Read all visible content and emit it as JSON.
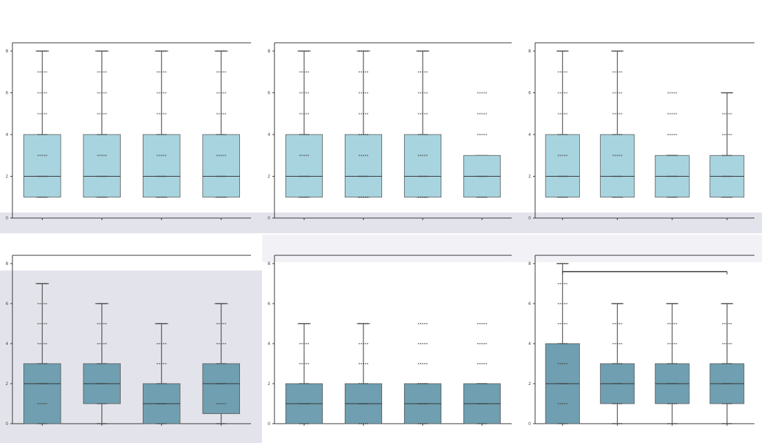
{
  "figure": {
    "suptitle": "",
    "background": "#ffffff"
  },
  "chart_data": [
    {
      "type": "box",
      "title_line1": "",
      "title_line2": "",
      "xlabel": "",
      "ylabel": "",
      "ylim": [
        0,
        8
      ],
      "yticks": [
        0,
        2,
        4,
        6,
        8
      ],
      "categories": [
        "",
        "",
        "",
        ""
      ],
      "boxes": [
        {
          "q1": 1,
          "median": 2,
          "q3": 4,
          "whisker_low": 1,
          "whisker_high": 8
        },
        {
          "q1": 1,
          "median": 2,
          "q3": 4,
          "whisker_low": 1,
          "whisker_high": 8
        },
        {
          "q1": 1,
          "median": 2,
          "q3": 4,
          "whisker_low": 1,
          "whisker_high": 8
        },
        {
          "q1": 1,
          "median": 2,
          "q3": 4,
          "whisker_low": 1,
          "whisker_high": 8
        }
      ],
      "points": [
        [
          1,
          2,
          3,
          4,
          5,
          6,
          7,
          8
        ],
        [
          1,
          2,
          3,
          4,
          5,
          6,
          7,
          8
        ],
        [
          1,
          2,
          3,
          4,
          5,
          6,
          7,
          8
        ],
        [
          1,
          2,
          3,
          4,
          5,
          6,
          7,
          8
        ]
      ],
      "box_color": "#a8d4df",
      "bracket": null
    },
    {
      "type": "box",
      "title_line1": "",
      "title_line2": "",
      "xlabel": "",
      "ylabel": "",
      "ylim": [
        0,
        8
      ],
      "yticks": [
        0,
        2,
        4,
        6,
        8
      ],
      "categories": [
        "",
        "",
        "",
        ""
      ],
      "boxes": [
        {
          "q1": 1,
          "median": 2,
          "q3": 4,
          "whisker_low": 1,
          "whisker_high": 8
        },
        {
          "q1": 1,
          "median": 2,
          "q3": 4,
          "whisker_low": 1,
          "whisker_high": 8
        },
        {
          "q1": 1,
          "median": 2,
          "q3": 4,
          "whisker_low": 1,
          "whisker_high": 8
        },
        {
          "q1": 1,
          "median": 2,
          "q3": 3,
          "whisker_low": 1,
          "whisker_high": 3
        }
      ],
      "points": [
        [
          1,
          2,
          3,
          4,
          5,
          6,
          7,
          8
        ],
        [
          1,
          2,
          3,
          4,
          5,
          6,
          7,
          8
        ],
        [
          1,
          2,
          3,
          4,
          5,
          6,
          7,
          8
        ],
        [
          1,
          2,
          4,
          5,
          6
        ]
      ],
      "box_color": "#a8d4df",
      "bracket": null
    },
    {
      "type": "box",
      "title_line1": "",
      "title_line2": "",
      "xlabel": "",
      "ylabel": "",
      "ylim": [
        0,
        8
      ],
      "yticks": [
        0,
        2,
        4,
        6,
        8
      ],
      "categories": [
        "",
        "",
        "",
        ""
      ],
      "boxes": [
        {
          "q1": 1,
          "median": 2,
          "q3": 4,
          "whisker_low": 1,
          "whisker_high": 8
        },
        {
          "q1": 1,
          "median": 2,
          "q3": 4,
          "whisker_low": 1,
          "whisker_high": 8
        },
        {
          "q1": 1,
          "median": 2,
          "q3": 3,
          "whisker_low": 1,
          "whisker_high": 3
        },
        {
          "q1": 1,
          "median": 2,
          "q3": 3,
          "whisker_low": 1,
          "whisker_high": 6
        }
      ],
      "points": [
        [
          1,
          2,
          3,
          4,
          5,
          6,
          7,
          8
        ],
        [
          1,
          2,
          3,
          4,
          5,
          6,
          7,
          8
        ],
        [
          1,
          2,
          3,
          4,
          5,
          6
        ],
        [
          1,
          2,
          3,
          4,
          5,
          6
        ]
      ],
      "box_color": "#a8d4df",
      "bracket": null
    },
    {
      "type": "box",
      "title_line1": "",
      "title_line2": "",
      "xlabel": "",
      "ylabel": "",
      "ylim": [
        0,
        8
      ],
      "yticks": [
        0,
        2,
        4,
        6,
        8
      ],
      "categories": [
        "",
        "",
        "",
        ""
      ],
      "boxes": [
        {
          "q1": 0,
          "median": 2,
          "q3": 3,
          "whisker_low": 0,
          "whisker_high": 7
        },
        {
          "q1": 1,
          "median": 2,
          "q3": 3,
          "whisker_low": 0,
          "whisker_high": 6
        },
        {
          "q1": 0,
          "median": 1,
          "q3": 2,
          "whisker_low": 0,
          "whisker_high": 5
        },
        {
          "q1": 0.5,
          "median": 2,
          "q3": 3,
          "whisker_low": 0,
          "whisker_high": 6
        }
      ],
      "points": [
        [
          0,
          1,
          2,
          3,
          4,
          5,
          6,
          7
        ],
        [
          0,
          1,
          2,
          3,
          4,
          5,
          6
        ],
        [
          0,
          1,
          2,
          3,
          4,
          5
        ],
        [
          0,
          1,
          2,
          3,
          4,
          5,
          6
        ]
      ],
      "box_color": "#6f9fb0",
      "bracket": null
    },
    {
      "type": "box",
      "title_line1": "",
      "title_line2": "",
      "xlabel": "",
      "ylabel": "",
      "ylim": [
        0,
        8
      ],
      "yticks": [
        0,
        2,
        4,
        6,
        8
      ],
      "categories": [
        "",
        "",
        "",
        ""
      ],
      "boxes": [
        {
          "q1": 0,
          "median": 1,
          "q3": 2,
          "whisker_low": 0,
          "whisker_high": 5
        },
        {
          "q1": 0,
          "median": 1,
          "q3": 2,
          "whisker_low": 0,
          "whisker_high": 5
        },
        {
          "q1": 0,
          "median": 1,
          "q3": 2,
          "whisker_low": 0,
          "whisker_high": 2
        },
        {
          "q1": 0,
          "median": 1,
          "q3": 2,
          "whisker_low": 0,
          "whisker_high": 2
        }
      ],
      "points": [
        [
          0,
          1,
          2,
          3,
          4,
          5
        ],
        [
          0,
          1,
          2,
          3,
          4,
          5
        ],
        [
          0,
          1,
          2,
          3,
          4,
          5
        ],
        [
          0,
          1,
          2,
          3,
          4,
          5
        ]
      ],
      "box_color": "#6f9fb0",
      "bracket": null
    },
    {
      "type": "box",
      "title_line1": "",
      "title_line2": "",
      "xlabel": "",
      "ylabel": "",
      "ylim": [
        0,
        8
      ],
      "yticks": [
        0,
        2,
        4,
        6,
        8
      ],
      "categories": [
        "",
        "",
        "",
        ""
      ],
      "boxes": [
        {
          "q1": 0,
          "median": 2,
          "q3": 4,
          "whisker_low": 0,
          "whisker_high": 8
        },
        {
          "q1": 1,
          "median": 2,
          "q3": 3,
          "whisker_low": 0,
          "whisker_high": 6
        },
        {
          "q1": 1,
          "median": 2,
          "q3": 3,
          "whisker_low": 0,
          "whisker_high": 6
        },
        {
          "q1": 1,
          "median": 2,
          "q3": 3,
          "whisker_low": 0,
          "whisker_high": 6
        }
      ],
      "points": [
        [
          0,
          1,
          2,
          3,
          4,
          5,
          6,
          7,
          8
        ],
        [
          0,
          1,
          2,
          3,
          4,
          5,
          6
        ],
        [
          0,
          1,
          2,
          3,
          4,
          5,
          6
        ],
        [
          0,
          1,
          2,
          3,
          4,
          5,
          6
        ]
      ],
      "box_color": "#6f9fb0",
      "bracket": {
        "from": 0,
        "to": 3,
        "y": 7.6,
        "label": ""
      }
    }
  ]
}
